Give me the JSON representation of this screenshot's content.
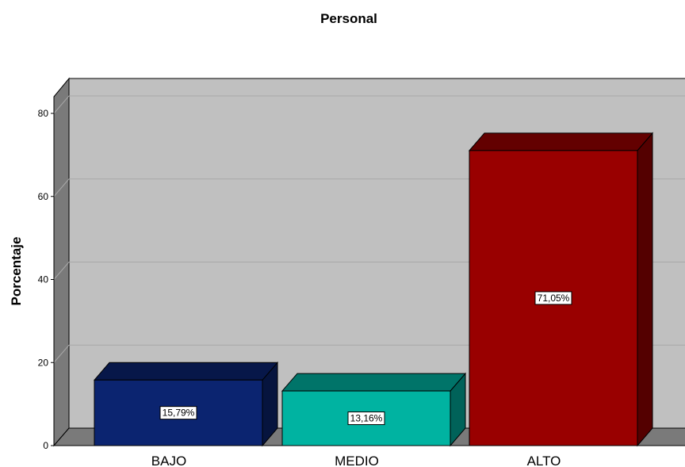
{
  "chart_data": {
    "type": "bar",
    "title": "Personal",
    "xlabel": "",
    "ylabel": "Porcentaje",
    "categories": [
      "BAJO",
      "MEDIO",
      "ALTO"
    ],
    "values": [
      15.79,
      13.16,
      71.05
    ],
    "data_labels": [
      "15,79%",
      "13,16%",
      "71,05%"
    ],
    "colors": [
      "#0b2470",
      "#00b3a1",
      "#990000"
    ],
    "ylim": [
      0,
      80
    ],
    "yticks": [
      0,
      20,
      40,
      60,
      80
    ],
    "grid": true,
    "legend": "none",
    "style": "3d"
  }
}
